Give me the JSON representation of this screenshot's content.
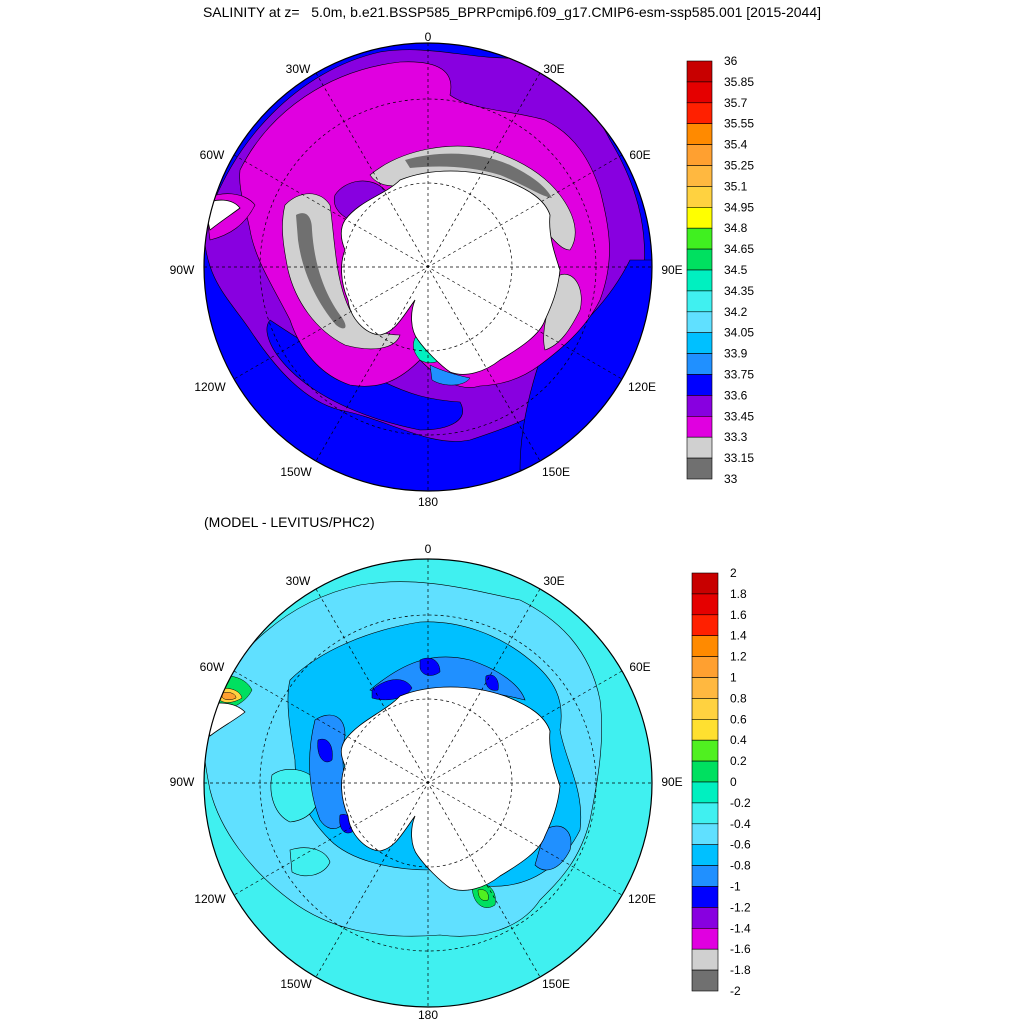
{
  "title": "SALINITY at z=   5.0m, b.e21.BSSP585_BPRPcmip6.f09_g17.CMIP6-esm-ssp585.001 [2015-2044]",
  "subtitle": "(MODEL - LEVITUS/PHC2)",
  "meridian_labels": [
    "0",
    "30E",
    "60E",
    "90E",
    "120E",
    "150E",
    "180",
    "150W",
    "120W",
    "90W",
    "60W",
    "30W"
  ],
  "top_map": {
    "colorbar": {
      "levels": [
        "36",
        "35.85",
        "35.7",
        "35.55",
        "35.4",
        "35.25",
        "35.1",
        "34.95",
        "34.8",
        "34.65",
        "34.5",
        "34.35",
        "34.2",
        "34.05",
        "33.9",
        "33.75",
        "33.6",
        "33.45",
        "33.3",
        "33.15",
        "33"
      ],
      "colors": [
        "#c80000",
        "#e50000",
        "#ff2000",
        "#ff8a00",
        "#ffa030",
        "#ffb840",
        "#ffd240",
        "#ffff00",
        "#40f020",
        "#00e060",
        "#00f0c0",
        "#40f0f0",
        "#60e0ff",
        "#00c0ff",
        "#2090ff",
        "#0000ff",
        "#8800e0",
        "#e000e0",
        "#d0d0d0",
        "#707070"
      ]
    }
  },
  "bottom_map": {
    "colorbar": {
      "levels": [
        "2",
        "1.8",
        "1.6",
        "1.4",
        "1.2",
        "1",
        "0.8",
        "0.6",
        "0.4",
        "0.2",
        "0",
        "-0.2",
        "-0.4",
        "-0.6",
        "-0.8",
        "-1",
        "-1.2",
        "-1.4",
        "-1.6",
        "-1.8",
        "-2"
      ],
      "colors": [
        "#c80000",
        "#e50000",
        "#ff2000",
        "#ff8a00",
        "#ffa030",
        "#ffb840",
        "#ffd240",
        "#ffe030",
        "#50f020",
        "#00e060",
        "#00f0c0",
        "#40f0f0",
        "#60e0ff",
        "#00c0ff",
        "#2090ff",
        "#0000ff",
        "#8800e0",
        "#e000e0",
        "#d0d0d0",
        "#707070"
      ]
    }
  }
}
